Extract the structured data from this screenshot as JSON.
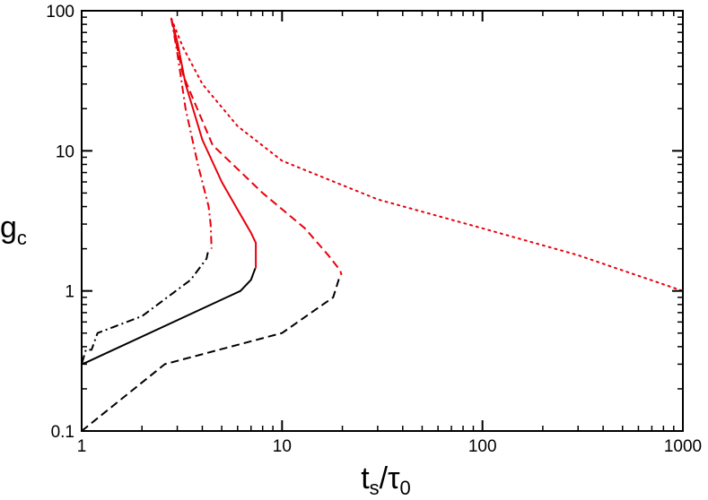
{
  "chart_data": {
    "type": "line",
    "title": "",
    "xlabel": {
      "main": "t",
      "sub": "s",
      "slash": "/",
      "main2": "τ",
      "sub2": "0"
    },
    "ylabel": {
      "main": "g",
      "sub": "c"
    },
    "xscale": "log",
    "yscale": "log",
    "xlim": [
      1,
      1000
    ],
    "ylim": [
      0.1,
      100
    ],
    "xticks": [
      1,
      10,
      100,
      1000
    ],
    "xtick_labels": [
      "1",
      "10",
      "100",
      "1000"
    ],
    "yticks": [
      0.1,
      1,
      10,
      100
    ],
    "ytick_labels": [
      "0.1",
      "1",
      "10",
      "100"
    ],
    "grid": false,
    "legend": "none",
    "series": [
      {
        "color": "#000000",
        "dash": "solid",
        "x": [
          1.0,
          1.0,
          1.06,
          4.6,
          6.2,
          7.0,
          7.35
        ],
        "y": [
          0.1,
          0.3,
          0.31,
          0.82,
          1.0,
          1.2,
          1.45
        ]
      },
      {
        "color": "#000000",
        "dash": "dashed",
        "x": [
          1.0,
          2.6,
          10.0,
          18.0,
          19.5
        ],
        "y": [
          0.1,
          0.3,
          0.5,
          0.9,
          1.3
        ]
      },
      {
        "color": "#000000",
        "dash": "dashdot",
        "x": [
          1.0,
          1.0,
          1.05,
          1.12,
          1.2,
          2.0,
          3.5,
          4.2,
          4.3
        ],
        "y": [
          0.1,
          0.3,
          0.38,
          0.38,
          0.5,
          0.66,
          1.2,
          1.7,
          2.0
        ]
      },
      {
        "color": "#e8000b",
        "dash": "solid",
        "x": [
          2.8,
          3.0,
          3.3,
          4.0,
          5.0,
          6.0,
          7.0,
          7.4,
          7.4
        ],
        "y": [
          88,
          60,
          30,
          12,
          6,
          3.8,
          2.6,
          2.2,
          1.45
        ]
      },
      {
        "color": "#e8000b",
        "dash": "dashed",
        "x": [
          2.8,
          3.2,
          4.5,
          8.0,
          13.0,
          17.0,
          19.5,
          19.8
        ],
        "y": [
          88,
          35,
          11,
          5.0,
          2.8,
          1.8,
          1.4,
          1.3
        ]
      },
      {
        "color": "#e8000b",
        "dash": "dashdot",
        "x": [
          2.8,
          3.0,
          3.3,
          3.8,
          4.3,
          4.4,
          4.45
        ],
        "y": [
          88,
          50,
          20,
          8,
          4,
          3,
          2.0
        ]
      },
      {
        "color": "#e8000b",
        "dash": "dotted",
        "x": [
          2.8,
          3.2,
          4.0,
          6.0,
          10.0,
          30.0,
          100.0,
          300.0,
          1000.0
        ],
        "y": [
          88,
          55,
          30,
          15,
          8.5,
          4.5,
          2.8,
          1.8,
          1.0
        ]
      }
    ]
  }
}
